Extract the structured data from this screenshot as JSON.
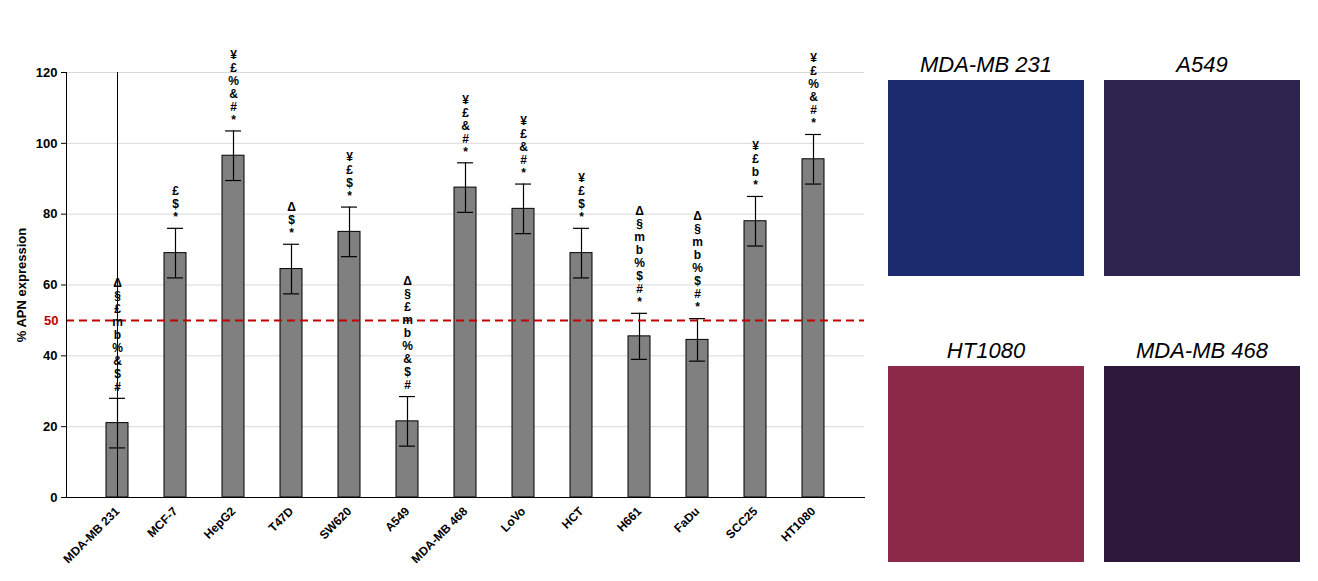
{
  "chart_data": {
    "type": "bar",
    "categories": [
      "MDA-MB 231",
      "MCF-7",
      "HepG2",
      "T47D",
      "SW620",
      "A549",
      "MDA-MB 468",
      "LoVo",
      "HCT",
      "H661",
      "FaDu",
      "SCC25",
      "HT1080"
    ],
    "values": [
      21,
      69,
      96.5,
      64.5,
      75,
      21.5,
      87.5,
      81.5,
      69,
      45.5,
      44.5,
      78,
      95.5
    ],
    "errors": [
      7,
      7,
      7,
      7,
      7,
      7,
      7,
      7,
      7,
      6.5,
      6,
      7,
      7
    ],
    "annotations": [
      [
        "Δ",
        "§",
        "£",
        "m",
        "b",
        "%",
        "&",
        "$",
        "#"
      ],
      [
        "£",
        "$",
        "*"
      ],
      [
        "¥",
        "£",
        "%",
        "&",
        "#",
        "*"
      ],
      [
        "Δ",
        "$",
        "*"
      ],
      [
        "¥",
        "£",
        "$",
        "*"
      ],
      [
        "Δ",
        "§",
        "£",
        "m",
        "b",
        "%",
        "&",
        "$",
        "#"
      ],
      [
        "¥",
        "£",
        "&",
        "#",
        "*"
      ],
      [
        "¥",
        "£",
        "&",
        "#",
        "*"
      ],
      [
        "¥",
        "£",
        "$",
        "*"
      ],
      [
        "Δ",
        "§",
        "m",
        "b",
        "%",
        "$",
        "#",
        "*"
      ],
      [
        "Δ",
        "§",
        "m",
        "b",
        "%",
        "$",
        "#",
        "*"
      ],
      [
        "¥",
        "£",
        "b",
        "*"
      ],
      [
        "¥",
        "£",
        "%",
        "&",
        "#",
        "*"
      ]
    ],
    "color": "#808080",
    "ylabel": "% APN expression",
    "ylim": [
      0,
      120
    ],
    "yticks": [
      0,
      20,
      40,
      60,
      80,
      100,
      120
    ],
    "grid": true,
    "reference_line": {
      "value": 50,
      "label": "50",
      "color": "#c00000",
      "line_style": "dashed"
    }
  },
  "images": [
    {
      "label": "MDA-MB 231",
      "color": "#1c2a6e"
    },
    {
      "label": "A549",
      "color": "#2e2450"
    },
    {
      "label": "HT1080",
      "color": "#8c2848"
    },
    {
      "label": "MDA-MB 468",
      "color": "#2c1838"
    }
  ]
}
